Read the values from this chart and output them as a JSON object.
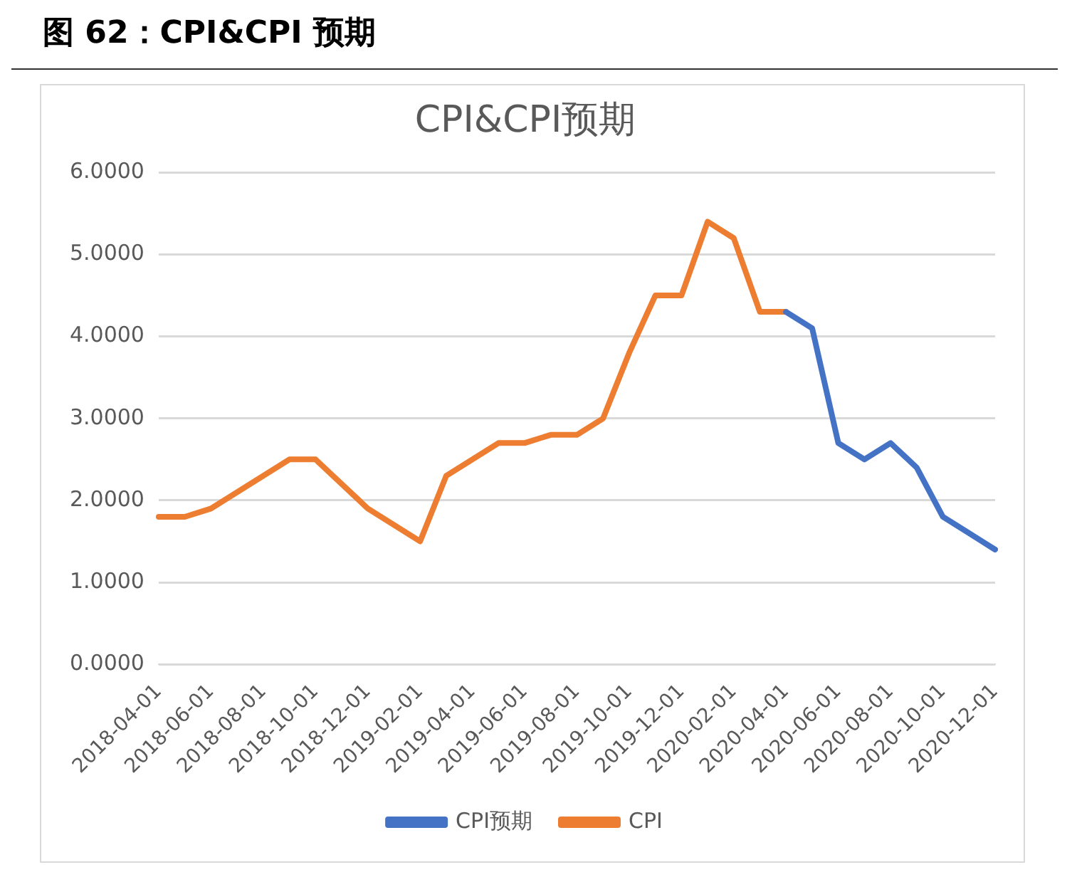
{
  "chart_data": {
    "type": "line",
    "title": "图 62：CPI&CPI 预期",
    "subtitle": "CPI&CPI预期",
    "categories": [
      "2018-04-01",
      null,
      "2018-06-01",
      null,
      "2018-08-01",
      null,
      "2018-10-01",
      null,
      "2018-12-01",
      null,
      "2019-02-01",
      null,
      "2019-04-01",
      null,
      "2019-06-01",
      null,
      "2019-08-01",
      null,
      "2019-10-01",
      null,
      "2019-12-01",
      null,
      "2020-02-01",
      null,
      "2020-04-01",
      null,
      "2020-06-01",
      null,
      "2020-08-01",
      null,
      "2020-10-01",
      null,
      "2020-12-01"
    ],
    "series": [
      {
        "name": "CPI预期",
        "color": "#4472c4",
        "values": [
          null,
          null,
          null,
          null,
          null,
          null,
          null,
          null,
          null,
          null,
          null,
          null,
          null,
          null,
          null,
          null,
          null,
          null,
          null,
          null,
          null,
          null,
          null,
          null,
          4.3,
          4.1,
          2.7,
          2.5,
          2.7,
          2.4,
          1.8,
          1.6,
          1.4
        ]
      },
      {
        "name": "CPI",
        "color": "#ed7d31",
        "values": [
          1.8,
          1.8,
          1.9,
          2.1,
          2.3,
          2.5,
          2.5,
          2.2,
          1.9,
          1.7,
          1.5,
          2.3,
          2.5,
          2.7,
          2.7,
          2.8,
          2.8,
          3.0,
          3.8,
          4.5,
          4.5,
          5.4,
          5.2,
          4.3,
          4.3,
          null,
          null,
          null,
          null,
          null,
          null,
          null,
          null
        ]
      }
    ],
    "ylim": [
      0,
      6
    ],
    "yticks": [
      {
        "value": 0,
        "label": "0.0000"
      },
      {
        "value": 1,
        "label": "1.0000"
      },
      {
        "value": 2,
        "label": "2.0000"
      },
      {
        "value": 3,
        "label": "3.0000"
      },
      {
        "value": 4,
        "label": "4.0000"
      },
      {
        "value": 5,
        "label": "5.0000"
      },
      {
        "value": 6,
        "label": "6.0000"
      }
    ],
    "grid": "y",
    "legend": "bottom",
    "marker": "none",
    "line_style": "solid"
  }
}
